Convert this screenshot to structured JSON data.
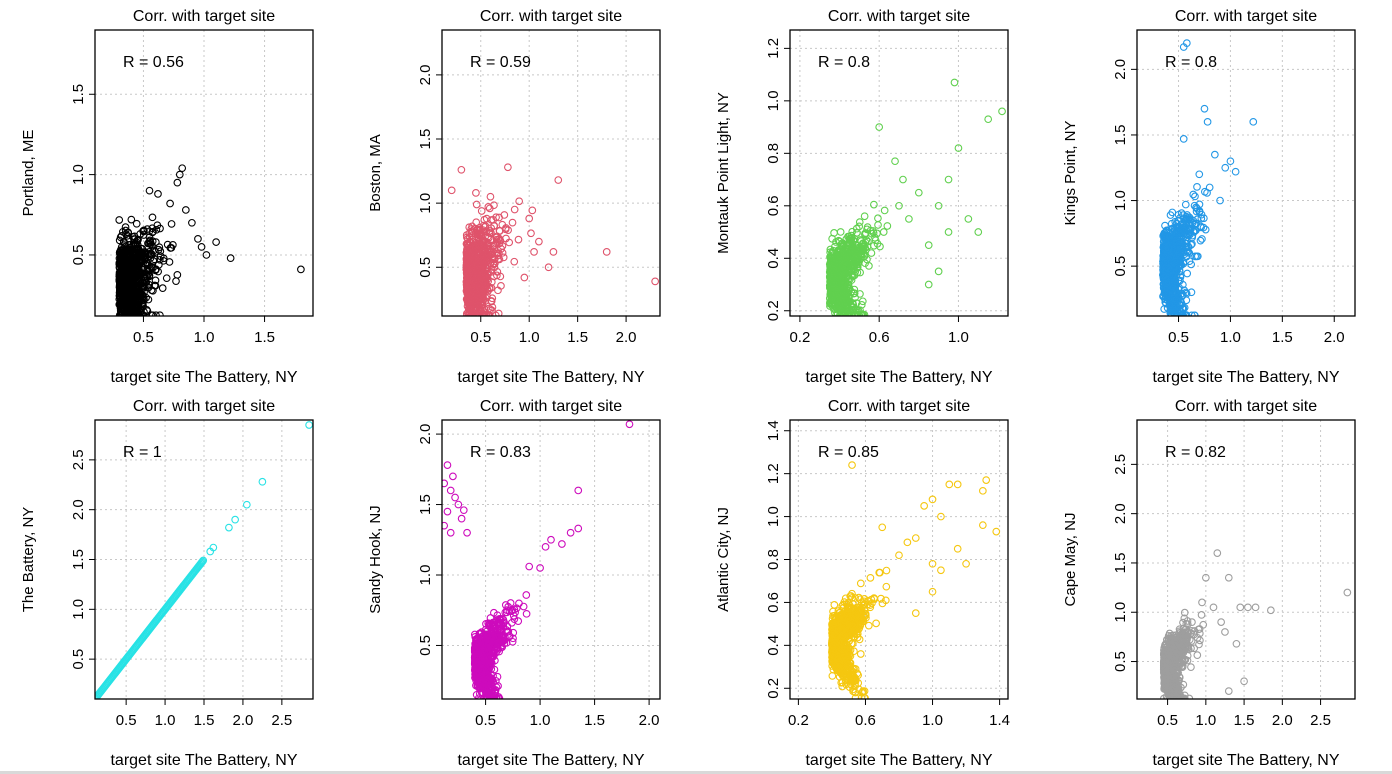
{
  "chart_data": [
    {
      "type": "scatter",
      "title": "Corr. with target site",
      "xlabel": "target site The Battery, NY",
      "ylabel": "Portland, ME",
      "annotation": "R =  0.56",
      "r": 0.56,
      "color": "#000000",
      "xlim": [
        0.1,
        1.9
      ],
      "ylim": [
        0.12,
        1.9
      ],
      "xticks": [
        0.5,
        1.0,
        1.5
      ],
      "yticks": [
        0.5,
        1.0,
        1.5
      ],
      "cloud": {
        "cx": 0.3,
        "cy": 0.35,
        "sx": 0.16,
        "sy": 0.14,
        "n": 900
      },
      "points": [
        [
          1.8,
          0.41
        ],
        [
          1.22,
          0.48
        ],
        [
          1.1,
          0.58
        ],
        [
          0.82,
          1.04
        ],
        [
          0.8,
          1.0
        ],
        [
          0.78,
          0.95
        ],
        [
          0.55,
          0.9
        ],
        [
          0.62,
          0.88
        ],
        [
          0.98,
          0.55
        ],
        [
          1.02,
          0.5
        ],
        [
          0.95,
          0.6
        ],
        [
          0.9,
          0.7
        ],
        [
          0.72,
          0.82
        ],
        [
          0.85,
          0.78
        ],
        [
          0.4,
          0.72
        ]
      ],
      "line": false
    },
    {
      "type": "scatter",
      "title": "Corr. with target site",
      "xlabel": "target site The Battery, NY",
      "ylabel": "Boston, MA",
      "annotation": "R =  0.59",
      "r": 0.59,
      "color": "#DF536B",
      "xlim": [
        0.1,
        2.35
      ],
      "ylim": [
        0.12,
        2.35
      ],
      "xticks": [
        0.5,
        1.0,
        1.5,
        2.0
      ],
      "yticks": [
        0.5,
        1.0,
        1.5,
        2.0
      ],
      "cloud": {
        "cx": 0.35,
        "cy": 0.45,
        "sx": 0.18,
        "sy": 0.18,
        "n": 900
      },
      "points": [
        [
          2.3,
          0.39
        ],
        [
          1.8,
          0.62
        ],
        [
          1.3,
          1.18
        ],
        [
          0.78,
          1.28
        ],
        [
          0.3,
          1.26
        ],
        [
          1.0,
          0.88
        ],
        [
          1.05,
          0.62
        ],
        [
          1.2,
          0.5
        ],
        [
          0.85,
          0.95
        ],
        [
          0.45,
          1.08
        ],
        [
          0.6,
          1.05
        ],
        [
          1.1,
          0.7
        ],
        [
          0.95,
          0.42
        ],
        [
          1.25,
          0.62
        ],
        [
          0.2,
          1.1
        ]
      ],
      "line": false
    },
    {
      "type": "scatter",
      "title": "Corr. with target site",
      "xlabel": "target site The Battery, NY",
      "ylabel": "Montauk Point Light, NY",
      "annotation": "R =  0.8",
      "r": 0.8,
      "color": "#61D04F",
      "xlim": [
        0.15,
        1.25
      ],
      "ylim": [
        0.18,
        1.27
      ],
      "xticks": [
        0.2,
        0.6,
        1.0
      ],
      "yticks": [
        0.2,
        0.4,
        0.6,
        0.8,
        1.0,
        1.2
      ],
      "cloud": {
        "cx": 0.35,
        "cy": 0.33,
        "sx": 0.1,
        "sy": 0.08,
        "n": 900
      },
      "points": [
        [
          1.22,
          0.96
        ],
        [
          0.98,
          1.07
        ],
        [
          1.15,
          0.93
        ],
        [
          1.0,
          0.82
        ],
        [
          0.9,
          0.6
        ],
        [
          0.95,
          0.5
        ],
        [
          0.85,
          0.45
        ],
        [
          0.68,
          0.77
        ],
        [
          0.8,
          0.65
        ],
        [
          0.72,
          0.7
        ],
        [
          0.9,
          0.35
        ],
        [
          1.05,
          0.55
        ],
        [
          0.6,
          0.9
        ],
        [
          0.75,
          0.55
        ],
        [
          0.85,
          0.3
        ],
        [
          0.7,
          0.6
        ],
        [
          0.95,
          0.7
        ],
        [
          1.1,
          0.5
        ]
      ],
      "line": false
    },
    {
      "type": "scatter",
      "title": "Corr. with target site",
      "xlabel": "target site The Battery, NY",
      "ylabel": "Kings Point, NY",
      "annotation": "R =  0.8",
      "r": 0.8,
      "color": "#2297E6",
      "xlim": [
        0.1,
        2.2
      ],
      "ylim": [
        0.12,
        2.3
      ],
      "xticks": [
        0.5,
        1.0,
        1.5,
        2.0
      ],
      "yticks": [
        0.5,
        1.0,
        1.5,
        2.0
      ],
      "cloud": {
        "cx": 0.35,
        "cy": 0.5,
        "sx": 0.16,
        "sy": 0.2,
        "n": 900
      },
      "points": [
        [
          0.58,
          2.2
        ],
        [
          0.55,
          2.17
        ],
        [
          0.75,
          1.7
        ],
        [
          0.78,
          1.6
        ],
        [
          0.55,
          1.47
        ],
        [
          1.22,
          1.6
        ],
        [
          1.0,
          1.3
        ],
        [
          1.05,
          1.22
        ],
        [
          0.95,
          1.25
        ],
        [
          0.8,
          1.1
        ],
        [
          0.9,
          1.0
        ],
        [
          0.85,
          1.35
        ],
        [
          0.7,
          1.2
        ]
      ],
      "line": false
    },
    {
      "type": "scatter",
      "title": "Corr. with target site",
      "xlabel": "target site The Battery, NY",
      "ylabel": "The Battery, NY",
      "annotation": "R =  1",
      "r": 1.0,
      "color": "#28E2E5",
      "xlim": [
        0.1,
        2.9
      ],
      "ylim": [
        0.1,
        2.9
      ],
      "xticks": [
        0.5,
        1.0,
        1.5,
        2.0,
        2.5
      ],
      "yticks": [
        0.5,
        1.0,
        1.5,
        2.0,
        2.5
      ],
      "cloud": {
        "cx": 0.0,
        "cy": 0.0,
        "sx": 0.0,
        "sy": 0.0,
        "n": 0
      },
      "points": [
        [
          2.85,
          2.85
        ],
        [
          2.25,
          2.28
        ],
        [
          2.05,
          2.05
        ],
        [
          1.9,
          1.9
        ],
        [
          1.82,
          1.82
        ],
        [
          1.62,
          1.62
        ],
        [
          1.58,
          1.58
        ]
      ],
      "line": true,
      "line_range": [
        0.1,
        1.5
      ]
    },
    {
      "type": "scatter",
      "title": "Corr. with target site",
      "xlabel": "target site The Battery, NY",
      "ylabel": "Sandy Hook, NJ",
      "annotation": "R =  0.83",
      "r": 0.83,
      "color": "#CD0BBC",
      "xlim": [
        0.1,
        2.1
      ],
      "ylim": [
        0.12,
        2.1
      ],
      "xticks": [
        0.5,
        1.0,
        1.5,
        2.0
      ],
      "yticks": [
        0.5,
        1.0,
        1.5,
        2.0
      ],
      "cloud": {
        "cx": 0.4,
        "cy": 0.4,
        "sx": 0.15,
        "sy": 0.14,
        "n": 900
      },
      "points": [
        [
          1.82,
          2.07
        ],
        [
          0.15,
          1.78
        ],
        [
          0.2,
          1.7
        ],
        [
          0.18,
          1.6
        ],
        [
          0.12,
          1.65
        ],
        [
          0.3,
          1.46
        ],
        [
          0.25,
          1.5
        ],
        [
          0.33,
          1.3
        ],
        [
          0.18,
          1.3
        ],
        [
          1.35,
          1.6
        ],
        [
          1.35,
          1.33
        ],
        [
          1.28,
          1.3
        ],
        [
          1.1,
          1.25
        ],
        [
          1.05,
          1.2
        ],
        [
          0.9,
          1.06
        ],
        [
          1.0,
          1.05
        ],
        [
          0.15,
          1.45
        ],
        [
          1.2,
          1.22
        ],
        [
          0.22,
          1.55
        ],
        [
          0.28,
          1.4
        ],
        [
          0.12,
          1.35
        ]
      ],
      "line": false
    },
    {
      "type": "scatter",
      "title": "Corr. with target site",
      "xlabel": "target site The Battery, NY",
      "ylabel": "Atlantic  City, NJ",
      "annotation": "R =  0.85",
      "r": 0.85,
      "color": "#F5C710",
      "xlim": [
        0.15,
        1.45
      ],
      "ylim": [
        0.15,
        1.45
      ],
      "xticks": [
        0.2,
        0.6,
        1.0,
        1.4
      ],
      "yticks": [
        0.2,
        0.4,
        0.6,
        0.8,
        1.0,
        1.2,
        1.4
      ],
      "cloud": {
        "cx": 0.4,
        "cy": 0.42,
        "sx": 0.11,
        "sy": 0.1,
        "n": 900
      },
      "points": [
        [
          1.32,
          1.17
        ],
        [
          1.3,
          1.12
        ],
        [
          1.15,
          1.15
        ],
        [
          1.1,
          1.15
        ],
        [
          1.3,
          0.96
        ],
        [
          1.38,
          0.93
        ],
        [
          1.0,
          1.08
        ],
        [
          1.05,
          1.0
        ],
        [
          0.95,
          1.05
        ],
        [
          0.52,
          1.24
        ],
        [
          0.85,
          0.88
        ],
        [
          1.0,
          0.78
        ],
        [
          1.05,
          0.75
        ],
        [
          0.9,
          0.9
        ],
        [
          0.7,
          0.95
        ],
        [
          0.8,
          0.82
        ],
        [
          1.0,
          0.65
        ],
        [
          1.15,
          0.85
        ],
        [
          1.2,
          0.78
        ],
        [
          0.9,
          0.55
        ]
      ],
      "line": false
    },
    {
      "type": "scatter",
      "title": "Corr. with target site",
      "xlabel": "target site The Battery, NY",
      "ylabel": "Cape May, NJ",
      "annotation": "R =  0.82",
      "r": 0.82,
      "color": "#9E9E9E",
      "xlim": [
        0.1,
        2.95
      ],
      "ylim": [
        0.12,
        2.95
      ],
      "xticks": [
        0.5,
        1.0,
        1.5,
        2.0,
        2.5
      ],
      "yticks": [
        0.5,
        1.0,
        1.5,
        2.0,
        2.5
      ],
      "cloud": {
        "cx": 0.45,
        "cy": 0.45,
        "sx": 0.17,
        "sy": 0.18,
        "n": 900
      },
      "points": [
        [
          1.15,
          1.6
        ],
        [
          1.3,
          1.35
        ],
        [
          1.0,
          1.35
        ],
        [
          2.85,
          1.2
        ],
        [
          1.85,
          1.02
        ],
        [
          1.55,
          1.05
        ],
        [
          1.45,
          1.05
        ],
        [
          1.65,
          1.05
        ],
        [
          1.4,
          0.68
        ],
        [
          1.2,
          0.9
        ],
        [
          1.1,
          1.05
        ],
        [
          0.95,
          1.1
        ],
        [
          1.3,
          0.2
        ],
        [
          1.25,
          0.8
        ],
        [
          1.5,
          0.3
        ]
      ],
      "line": false
    }
  ]
}
